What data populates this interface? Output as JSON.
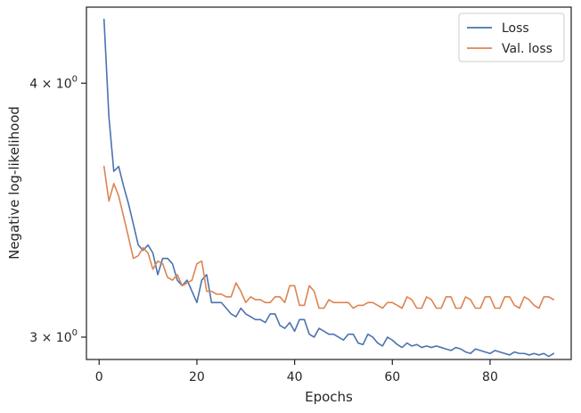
{
  "chart_data": {
    "type": "line",
    "xlabel": "Epochs",
    "ylabel": "Negative log-likelihood",
    "yscale": "log",
    "xlim": [
      -2.6,
      96.6
    ],
    "ylim": [
      2.925,
      4.36
    ],
    "xticks": [
      0,
      20,
      40,
      60,
      80
    ],
    "xtick_labels": [
      "0",
      "20",
      "40",
      "60",
      "80"
    ],
    "yticks": [
      {
        "value": 4.0,
        "base": "4 × 10",
        "exp": "0"
      },
      {
        "value": 3.0,
        "base": "3 × 10",
        "exp": "0"
      }
    ],
    "legend_position": "top-right",
    "grid": false,
    "series": [
      {
        "name": "Loss",
        "color": "#4c72b0",
        "x": [
          1,
          2,
          3,
          4,
          5,
          6,
          7,
          8,
          9,
          10,
          11,
          12,
          13,
          14,
          15,
          16,
          17,
          18,
          19,
          20,
          21,
          22,
          23,
          24,
          25,
          26,
          27,
          28,
          29,
          30,
          31,
          32,
          33,
          34,
          35,
          36,
          37,
          38,
          39,
          40,
          41,
          42,
          43,
          44,
          45,
          46,
          47,
          48,
          49,
          50,
          51,
          52,
          53,
          54,
          55,
          56,
          57,
          58,
          59,
          60,
          61,
          62,
          63,
          64,
          65,
          66,
          67,
          68,
          69,
          70,
          71,
          72,
          73,
          74,
          75,
          76,
          77,
          78,
          79,
          80,
          81,
          82,
          83,
          84,
          85,
          86,
          87,
          88,
          89,
          90,
          91,
          92,
          93
        ],
        "values": [
          4.3,
          3.85,
          3.62,
          3.64,
          3.56,
          3.49,
          3.41,
          3.33,
          3.31,
          3.33,
          3.3,
          3.22,
          3.28,
          3.28,
          3.26,
          3.2,
          3.18,
          3.2,
          3.16,
          3.12,
          3.2,
          3.22,
          3.12,
          3.12,
          3.12,
          3.1,
          3.08,
          3.07,
          3.1,
          3.08,
          3.07,
          3.06,
          3.06,
          3.05,
          3.08,
          3.08,
          3.04,
          3.03,
          3.05,
          3.02,
          3.06,
          3.06,
          3.01,
          3.0,
          3.03,
          3.02,
          3.01,
          3.01,
          3.0,
          2.99,
          3.01,
          3.01,
          2.98,
          2.975,
          3.01,
          3.0,
          2.98,
          2.97,
          3.0,
          2.99,
          2.975,
          2.965,
          2.98,
          2.97,
          2.975,
          2.965,
          2.97,
          2.965,
          2.97,
          2.965,
          2.96,
          2.955,
          2.965,
          2.96,
          2.95,
          2.945,
          2.96,
          2.955,
          2.95,
          2.945,
          2.955,
          2.95,
          2.945,
          2.94,
          2.95,
          2.945,
          2.945,
          2.94,
          2.945,
          2.94,
          2.945,
          2.935,
          2.945
        ]
      },
      {
        "name": "Val. loss",
        "color": "#dd8452",
        "x": [
          1,
          2,
          3,
          4,
          5,
          6,
          7,
          8,
          9,
          10,
          11,
          12,
          13,
          14,
          15,
          16,
          17,
          18,
          19,
          20,
          21,
          22,
          23,
          24,
          25,
          26,
          27,
          28,
          29,
          30,
          31,
          32,
          33,
          34,
          35,
          36,
          37,
          38,
          39,
          40,
          41,
          42,
          43,
          44,
          45,
          46,
          47,
          48,
          49,
          50,
          51,
          52,
          53,
          54,
          55,
          56,
          57,
          58,
          59,
          60,
          61,
          62,
          63,
          64,
          65,
          66,
          67,
          68,
          69,
          70,
          71,
          72,
          73,
          74,
          75,
          76,
          77,
          78,
          79,
          80,
          81,
          82,
          83,
          84,
          85,
          86,
          87,
          88,
          89,
          90,
          91,
          92,
          93
        ],
        "values": [
          3.64,
          3.5,
          3.57,
          3.52,
          3.44,
          3.36,
          3.28,
          3.29,
          3.32,
          3.3,
          3.24,
          3.27,
          3.26,
          3.21,
          3.2,
          3.22,
          3.18,
          3.19,
          3.2,
          3.26,
          3.27,
          3.16,
          3.16,
          3.15,
          3.15,
          3.14,
          3.14,
          3.19,
          3.16,
          3.12,
          3.14,
          3.13,
          3.13,
          3.12,
          3.12,
          3.14,
          3.14,
          3.12,
          3.18,
          3.18,
          3.11,
          3.11,
          3.18,
          3.16,
          3.1,
          3.1,
          3.13,
          3.12,
          3.12,
          3.12,
          3.12,
          3.1,
          3.11,
          3.11,
          3.12,
          3.12,
          3.11,
          3.1,
          3.12,
          3.12,
          3.11,
          3.1,
          3.14,
          3.13,
          3.1,
          3.1,
          3.14,
          3.13,
          3.1,
          3.1,
          3.14,
          3.14,
          3.1,
          3.1,
          3.14,
          3.13,
          3.1,
          3.1,
          3.14,
          3.14,
          3.1,
          3.1,
          3.14,
          3.14,
          3.11,
          3.1,
          3.14,
          3.13,
          3.11,
          3.1,
          3.14,
          3.14,
          3.13
        ]
      }
    ]
  }
}
